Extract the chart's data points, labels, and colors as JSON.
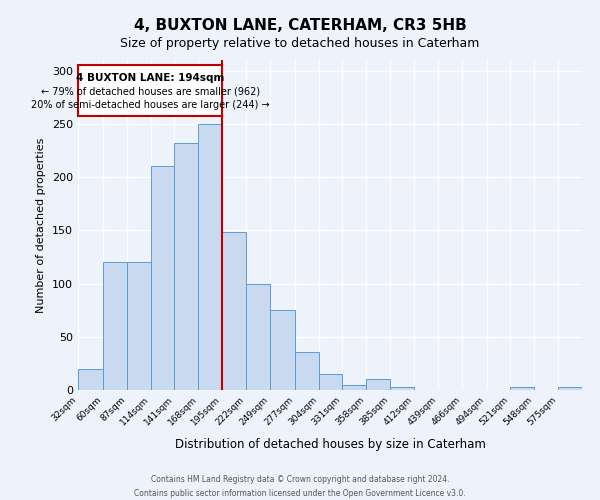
{
  "title": "4, BUXTON LANE, CATERHAM, CR3 5HB",
  "subtitle": "Size of property relative to detached houses in Caterham",
  "xlabel": "Distribution of detached houses by size in Caterham",
  "ylabel": "Number of detached properties",
  "bin_labels": [
    "32sqm",
    "60sqm",
    "87sqm",
    "114sqm",
    "141sqm",
    "168sqm",
    "195sqm",
    "222sqm",
    "249sqm",
    "277sqm",
    "304sqm",
    "331sqm",
    "358sqm",
    "385sqm",
    "412sqm",
    "439sqm",
    "466sqm",
    "494sqm",
    "521sqm",
    "548sqm",
    "575sqm"
  ],
  "bar_values": [
    20,
    120,
    120,
    210,
    232,
    250,
    148,
    100,
    75,
    36,
    15,
    5,
    10,
    3,
    0,
    0,
    0,
    0,
    3,
    0,
    3
  ],
  "bar_color": "#c9d9f0",
  "bar_edge_color": "#5b9bd5",
  "bin_edges": [
    32,
    60,
    87,
    114,
    141,
    168,
    195,
    222,
    249,
    277,
    304,
    331,
    358,
    385,
    412,
    439,
    466,
    494,
    521,
    548,
    575,
    602
  ],
  "property_line_x": 195,
  "property_line_color": "#c00000",
  "annotation_text_line1": "4 BUXTON LANE: 194sqm",
  "annotation_text_line2": "← 79% of detached houses are smaller (962)",
  "annotation_text_line3": "20% of semi-detached houses are larger (244) →",
  "annotation_box_color": "#c00000",
  "ylim": [
    0,
    310
  ],
  "xlim": [
    32,
    602
  ],
  "background_color": "#eef2fb",
  "grid_color": "#ffffff",
  "footer_line1": "Contains HM Land Registry data © Crown copyright and database right 2024.",
  "footer_line2": "Contains public sector information licensed under the Open Government Licence v3.0."
}
